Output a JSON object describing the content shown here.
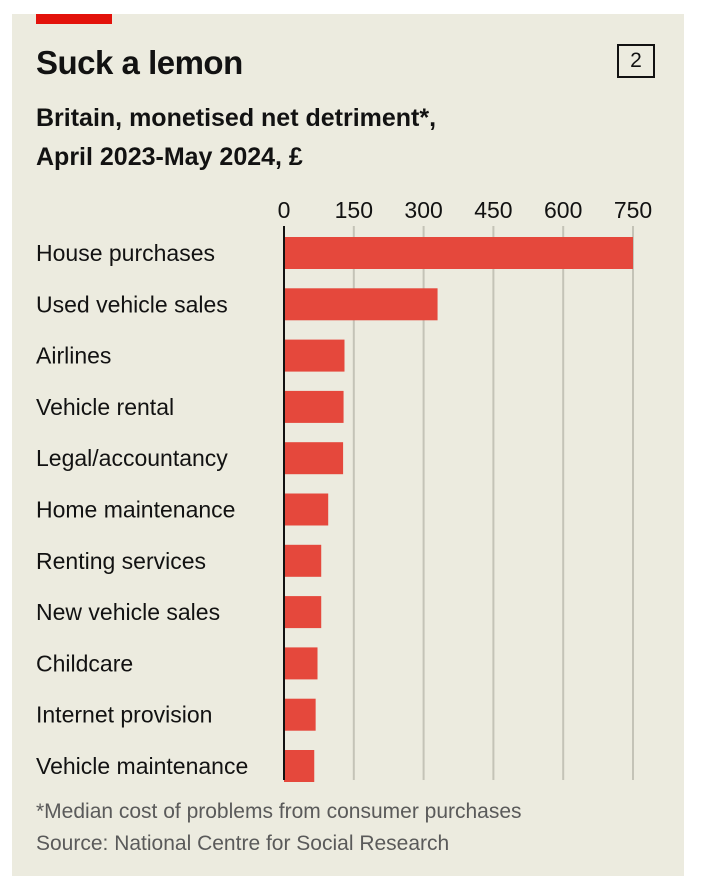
{
  "header": {
    "title": "Suck a lemon",
    "chart_number": "2",
    "subtitle_line1": "Britain, monetised net detriment*,",
    "subtitle_line2": "April 2023-May 2024, £"
  },
  "footer": {
    "footnote": "*Median cost of problems from consumer purchases",
    "source": "Source: National Centre for Social Research"
  },
  "colors": {
    "bar": "#e5483c",
    "background": "#ecebdf",
    "gridline": "#c4c3b7",
    "text": "#121212",
    "accent": "#e3120b"
  },
  "chart_data": {
    "type": "bar",
    "orientation": "horizontal",
    "title": "Suck a lemon",
    "subtitle": "Britain, monetised net detriment*, April 2023-May 2024, £",
    "xlabel": "",
    "ylabel": "",
    "xlim": [
      0,
      750
    ],
    "ticks": [
      "0",
      "150",
      "300",
      "450",
      "600",
      "750"
    ],
    "tick_values": [
      0,
      150,
      300,
      450,
      600,
      750
    ],
    "grid": true,
    "categories": [
      "House purchases",
      "Used vehicle sales",
      "Airlines",
      "Vehicle rental",
      "Legal/accountancy",
      "Home maintenance",
      "Renting services",
      "New vehicle sales",
      "Childcare",
      "Internet provision",
      "Vehicle maintenance"
    ],
    "values": [
      750,
      330,
      130,
      128,
      127,
      95,
      80,
      80,
      72,
      68,
      65
    ]
  }
}
